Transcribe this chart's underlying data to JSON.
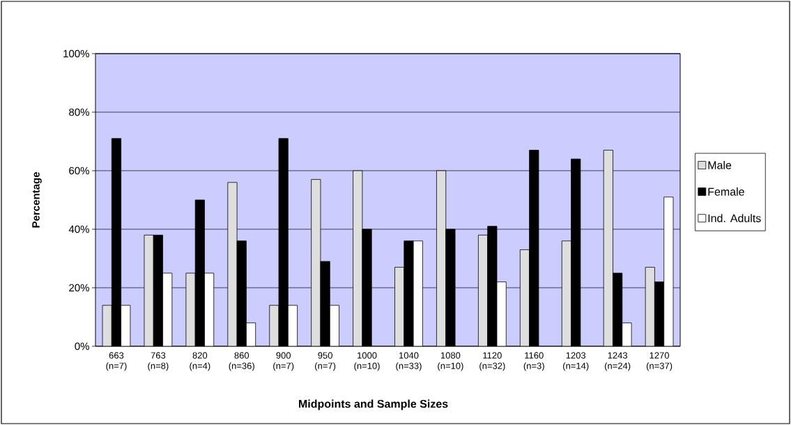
{
  "chart_data": {
    "type": "bar",
    "xlabel": "Midpoints and Sample Sizes",
    "ylabel": "Percentage",
    "categories": [
      "663 (n=7)",
      "763 (n=8)",
      "820 (n=4)",
      "860 (n=36)",
      "900 (n=7)",
      "950 (n=7)",
      "1000 (n=10)",
      "1040 (n=33)",
      "1080 (n=10)",
      "1120 (n=32)",
      "1160 (n=3)",
      "1203 (n=14)",
      "1243 (n=24)",
      "1270 (n=37)"
    ],
    "series": [
      {
        "name": "Male",
        "color": "#dedede",
        "values": [
          14,
          38,
          25,
          56,
          14,
          57,
          60,
          27,
          60,
          38,
          33,
          36,
          67,
          27
        ]
      },
      {
        "name": "Female",
        "color": "#000000",
        "values": [
          71,
          38,
          50,
          36,
          71,
          29,
          40,
          36,
          40,
          41,
          67,
          64,
          25,
          22
        ]
      },
      {
        "name": "Ind. Adults",
        "color": "#ffffff",
        "values": [
          14,
          25,
          25,
          8,
          14,
          14,
          null,
          36,
          null,
          22,
          null,
          null,
          8,
          51
        ]
      }
    ],
    "ylim": [
      0,
      100
    ],
    "yticks": [
      {
        "value": 0,
        "label": "0%"
      },
      {
        "value": 20,
        "label": "20%"
      },
      {
        "value": 40,
        "label": "40%"
      },
      {
        "value": 60,
        "label": "60%"
      },
      {
        "value": 80,
        "label": "80%"
      },
      {
        "value": 100,
        "label": "100%"
      }
    ],
    "grid": "y",
    "legend": "right"
  }
}
